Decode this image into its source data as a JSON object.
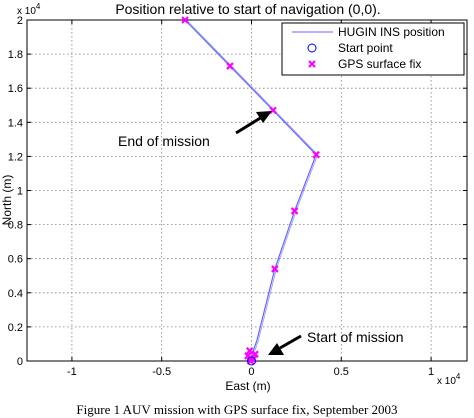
{
  "chart_data": {
    "type": "line",
    "title": "Position relative to start of navigation (0,0).",
    "xlabel": "East (m)",
    "ylabel": "North (m)",
    "x_exponent": "x 10",
    "x_exponent_power": "4",
    "y_exponent": "x 10",
    "y_exponent_power": "4",
    "xlim": [
      -12500,
      12000
    ],
    "ylim": [
      0,
      20000
    ],
    "x_ticks": [
      -10000,
      -5000,
      0,
      5000,
      10000
    ],
    "x_tick_labels": [
      "-1",
      "-0.5",
      "0",
      "0.5",
      "1"
    ],
    "y_ticks": [
      0,
      2000,
      4000,
      6000,
      8000,
      10000,
      12000,
      14000,
      16000,
      18000,
      20000
    ],
    "y_tick_labels": [
      "0",
      "0.2",
      "0.4",
      "0.6",
      "0.8",
      "1",
      "1.2",
      "1.4",
      "1.6",
      "1.8",
      "2"
    ],
    "grid": true,
    "legend_placement": "top-right",
    "legend": [
      {
        "label": "HUGIN INS position",
        "marker": "line",
        "color": "#6666ff"
      },
      {
        "label": "Start point",
        "marker": "circle",
        "color": "#0000ff"
      },
      {
        "label": "GPS surface fix",
        "marker": "x",
        "color": "#ff00ff"
      }
    ],
    "series": [
      {
        "name": "HUGIN INS position",
        "color": "#6666ff",
        "x": [
          -3700,
          -1200,
          1200,
          3600,
          2400,
          1300,
          300,
          0,
          -50
        ],
        "y": [
          20000,
          17300,
          14700,
          12100,
          8800,
          5400,
          1200,
          300,
          0
        ]
      },
      {
        "name": "Start point",
        "color": "#0000ff",
        "x": [
          0
        ],
        "y": [
          0
        ]
      },
      {
        "name": "GPS surface fix",
        "color": "#ff00ff",
        "x": [
          -3700,
          -1200,
          1200,
          3600,
          2400,
          1300,
          -100,
          200,
          -200,
          100,
          -50
        ],
        "y": [
          20000,
          17300,
          14700,
          12100,
          8800,
          5400,
          600,
          400,
          300,
          100,
          0
        ]
      }
    ],
    "annotations": [
      {
        "text": "End of mission",
        "x": 1200,
        "y": 14700
      },
      {
        "text": "Start of mission",
        "x": 0,
        "y": 100
      }
    ]
  },
  "caption": "Figure 1 AUV mission with GPS surface fix, September 2003"
}
